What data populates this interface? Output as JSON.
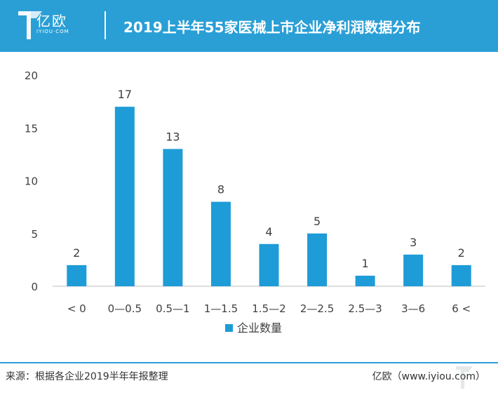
{
  "header": {
    "logo_text": "亿欧",
    "logo_sub": "IYIOU·COM",
    "title": "2019上半年55家医械上市企业净利润数据分布"
  },
  "footer": {
    "source": "来源：根据各企业2019半年年报整理",
    "credit": "亿欧（www.iyiou.com）"
  },
  "colors": {
    "header_bg": "#2a9fd6",
    "bar": "#1e9cd7"
  },
  "chart_data": {
    "type": "bar",
    "categories": [
      "< 0",
      "0—0.5",
      "0.5—1",
      "1—1.5",
      "1.5—2",
      "2—2.5",
      "2.5—3",
      "3—6",
      "6 <"
    ],
    "series": [
      {
        "name": "企业数量",
        "values": [
          2,
          17,
          13,
          8,
          4,
          5,
          1,
          3,
          2
        ]
      }
    ],
    "yticks": [
      0,
      5,
      10,
      15,
      20
    ],
    "ylim": [
      0,
      20
    ],
    "legend_position": "bottom",
    "grid": false,
    "data_labels": true
  }
}
